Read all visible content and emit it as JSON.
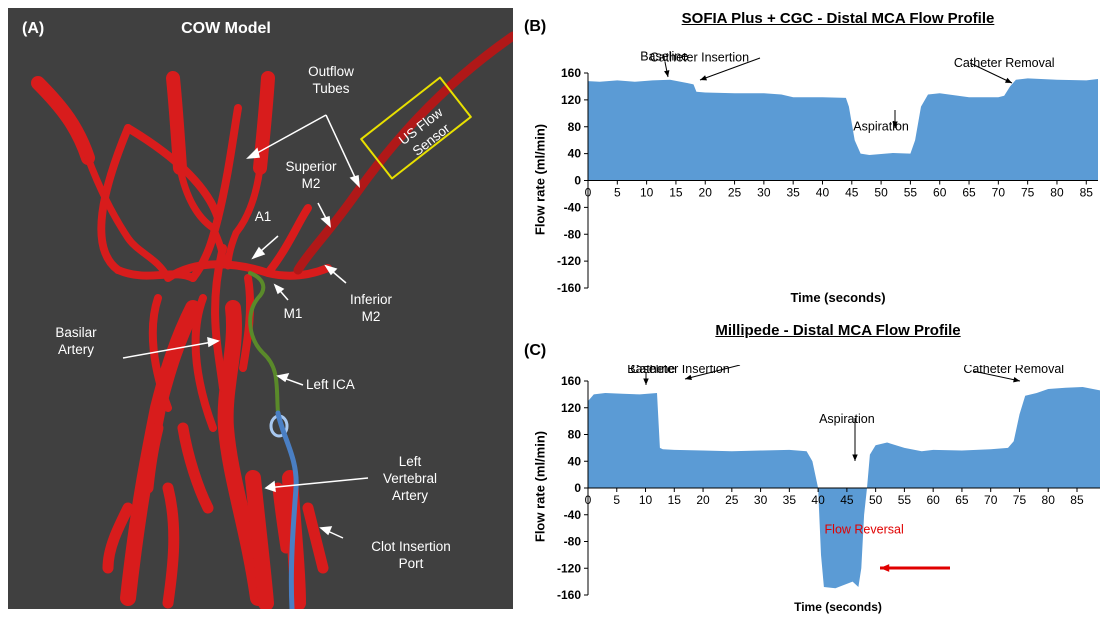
{
  "panel_a": {
    "panel_label": "(A)",
    "title": "COW Model",
    "labels": {
      "outflow_tubes": "Outflow\nTubes",
      "us_flow_sensor": "US Flow\nSensor",
      "superior_m2": "Superior\nM2",
      "a1": "A1",
      "m1": "M1",
      "inferior_m2": "Inferior\nM2",
      "basilar_artery": "Basilar\nArtery",
      "left_ica": "Left ICA",
      "left_vertebral_artery": "Left\nVertebral\nArtery",
      "clot_insertion_port": "Clot Insertion\nPort"
    },
    "colors": {
      "background": "#404040",
      "vessel": "#d81c1c",
      "catheter_green": "#5a8a2a",
      "catheter_blue": "#4a7fc4",
      "sensor_box": "#e8e000"
    }
  },
  "chart_data": [
    {
      "panel_label": "(B)",
      "type": "area",
      "title": "SOFIA Plus + CGC - Distal MCA Flow Profile",
      "xlabel": "Time (seconds)",
      "ylabel": "Flow rate (ml/min)",
      "xlim": [
        0,
        87
      ],
      "ylim": [
        -160,
        160
      ],
      "x_ticks": [
        0,
        5,
        10,
        15,
        20,
        25,
        30,
        35,
        40,
        45,
        50,
        55,
        60,
        65,
        70,
        75,
        80,
        85
      ],
      "y_ticks": [
        160,
        120,
        80,
        40,
        0,
        -40,
        -80,
        -120,
        -160
      ],
      "color": "#5b9bd5",
      "x": [
        0,
        2,
        5,
        8,
        11,
        14,
        17,
        18,
        18.5,
        20,
        25,
        30,
        33,
        35,
        38,
        40,
        44,
        44.5,
        45.5,
        46.5,
        48,
        52,
        55,
        55.8,
        56.8,
        58,
        60,
        65,
        70,
        71,
        72,
        73,
        75,
        80,
        85,
        87
      ],
      "y": [
        148,
        147,
        149,
        147,
        149,
        150,
        145,
        143,
        132,
        131,
        130,
        130,
        128,
        124,
        124,
        124,
        123,
        110,
        60,
        40,
        38,
        41,
        40,
        60,
        110,
        128,
        130,
        124,
        124,
        126,
        140,
        150,
        152,
        150,
        149,
        151
      ],
      "annotations": [
        {
          "text": "Baseline",
          "x": 13,
          "y": 152
        },
        {
          "text": "Catheter Insertion",
          "x": 19,
          "y": 150
        },
        {
          "text": "Aspiration",
          "x": 50,
          "y": 48
        },
        {
          "text": "Catheter Removal",
          "x": 71,
          "y": 142
        }
      ]
    },
    {
      "panel_label": "(C)",
      "type": "area",
      "title": "Millipede - Distal MCA Flow Profile",
      "xlabel": "Time (seconds)",
      "ylabel": "Flow rate (ml/min)",
      "xlim": [
        0,
        89
      ],
      "ylim": [
        -160,
        160
      ],
      "x_ticks": [
        0,
        5,
        10,
        15,
        20,
        25,
        30,
        35,
        40,
        45,
        50,
        55,
        60,
        65,
        70,
        75,
        80,
        85
      ],
      "y_ticks": [
        160,
        120,
        80,
        40,
        0,
        -40,
        -80,
        -120,
        -160
      ],
      "color": "#5b9bd5",
      "x": [
        0,
        1,
        3,
        6,
        9,
        12,
        12.5,
        13,
        15,
        20,
        25,
        30,
        35,
        38,
        39,
        40,
        40.5,
        41,
        43,
        46,
        47,
        47.5,
        48,
        48.5,
        49,
        50,
        52,
        55,
        58,
        60,
        65,
        70,
        73,
        74,
        75,
        76,
        78,
        80,
        83,
        86,
        89
      ],
      "y": [
        130,
        140,
        142,
        141,
        140,
        142,
        60,
        58,
        57,
        56,
        55,
        56,
        57,
        55,
        40,
        0,
        -100,
        -148,
        -150,
        -140,
        -148,
        -120,
        -40,
        0,
        50,
        64,
        68,
        60,
        55,
        57,
        56,
        58,
        60,
        70,
        110,
        138,
        142,
        148,
        150,
        151,
        146
      ],
      "annotations": [
        {
          "text": "Baseline",
          "x": 11,
          "y": 145
        },
        {
          "text": "Catheter Insertion",
          "x": 16,
          "y": 145
        },
        {
          "text": "Aspiration",
          "x": 45,
          "y": 70
        },
        {
          "text": "Catheter Removal",
          "x": 74,
          "y": 145
        },
        {
          "text": "Flow Reversal",
          "x": 48,
          "y": -95,
          "color": "#e00000"
        }
      ]
    }
  ]
}
